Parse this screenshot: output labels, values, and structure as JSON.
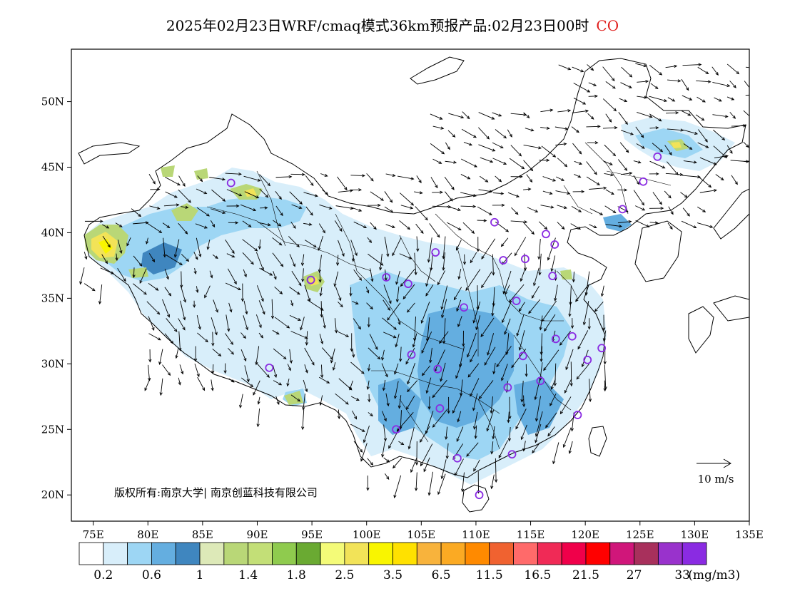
{
  "title": {
    "text": "2025年02月23日WRF/cmaq模式36km预报产品:02月23日00时",
    "species": "CO"
  },
  "map": {
    "lon_ticks": [
      "75E",
      "80E",
      "85E",
      "90E",
      "95E",
      "100E",
      "105E",
      "110E",
      "115E",
      "120E",
      "125E",
      "130E",
      "135E"
    ],
    "lat_ticks": [
      "20N",
      "25N",
      "30N",
      "35N",
      "40N",
      "45N",
      "50N"
    ],
    "lon_range": [
      73,
      135
    ],
    "lat_range": [
      18,
      54
    ],
    "copyright": "版权所有:南京大学| 南京创蓝科技有限公司",
    "wind_ref": "10 m/s"
  },
  "colorbar": {
    "colors": [
      "#ffffff",
      "#d8eefa",
      "#9dd6f4",
      "#64aee0",
      "#3f86bf",
      "#dde9b8",
      "#b9d777",
      "#c3df77",
      "#8fcb4e",
      "#6aaa32",
      "#f4fb78",
      "#f2e358",
      "#f9f500",
      "#ffe100",
      "#f8b33c",
      "#fbaa23",
      "#ff8a00",
      "#f06230",
      "#ff6a6a",
      "#f02a56",
      "#f0004a",
      "#ff0000",
      "#d0167a",
      "#a8305c",
      "#9932cc",
      "#8a2be2"
    ],
    "labels": [
      "0.2",
      "0.6",
      "1",
      "1.4",
      "1.8",
      "2.5",
      "3.5",
      "6.5",
      "11.5",
      "16.5",
      "21.5",
      "27",
      "33"
    ],
    "unit": "(mg/m3)"
  },
  "stations": [
    [
      87.6,
      43.8
    ],
    [
      91.1,
      29.7
    ],
    [
      94.9,
      36.4
    ],
    [
      101.8,
      36.6
    ],
    [
      103.8,
      36.1
    ],
    [
      106.3,
      38.5
    ],
    [
      111.7,
      40.8
    ],
    [
      112.5,
      37.9
    ],
    [
      114.5,
      38.0
    ],
    [
      116.4,
      39.9
    ],
    [
      117.2,
      39.1
    ],
    [
      117.0,
      36.7
    ],
    [
      113.7,
      34.8
    ],
    [
      108.9,
      34.3
    ],
    [
      104.1,
      30.7
    ],
    [
      106.5,
      29.6
    ],
    [
      106.7,
      26.6
    ],
    [
      102.7,
      25.0
    ],
    [
      108.3,
      22.8
    ],
    [
      113.3,
      23.1
    ],
    [
      110.3,
      20.0
    ],
    [
      112.9,
      28.2
    ],
    [
      114.3,
      30.6
    ],
    [
      115.9,
      28.7
    ],
    [
      117.3,
      31.9
    ],
    [
      118.8,
      32.1
    ],
    [
      120.2,
      30.3
    ],
    [
      121.5,
      31.2
    ],
    [
      119.3,
      26.1
    ],
    [
      123.4,
      41.8
    ],
    [
      125.3,
      43.9
    ],
    [
      126.6,
      45.8
    ]
  ]
}
